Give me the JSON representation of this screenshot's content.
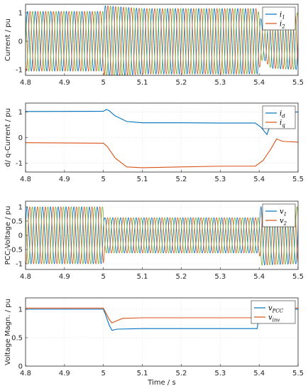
{
  "colors": {
    "blue": "#0072BD",
    "orange": "#D95319",
    "green": "#77AC30"
  },
  "chart_data": [
    {
      "type": "line",
      "ylabel": "Current / pu",
      "xlabel": "",
      "xlim": [
        4.8,
        5.5
      ],
      "ylim": [
        -1.2,
        1.3
      ],
      "xticks": [
        "4.8",
        "4.9",
        "5",
        "5.1",
        "5.2",
        "5.3",
        "5.4",
        "5.5"
      ],
      "yticks": [
        "-1",
        "0",
        "1"
      ],
      "grid": true,
      "legend_position": "top-right",
      "series": [
        {
          "name": "i",
          "sub": "1",
          "kind": "sin",
          "freq": 50,
          "phase": 0.0,
          "amp": [
            [
              4.8,
              1.05
            ],
            [
              5.0,
              1.05
            ],
            [
              5.003,
              1.25
            ],
            [
              5.05,
              1.2
            ],
            [
              5.1,
              1.15
            ],
            [
              5.395,
              1.15
            ],
            [
              5.41,
              0.6
            ],
            [
              5.43,
              0.95
            ],
            [
              5.5,
              1.0
            ]
          ]
        },
        {
          "name": "i",
          "sub": "2",
          "kind": "sin",
          "freq": 50,
          "phase": -2.094,
          "amp": [
            [
              4.8,
              1.05
            ],
            [
              5.0,
              1.05
            ],
            [
              5.003,
              1.25
            ],
            [
              5.05,
              1.2
            ],
            [
              5.1,
              1.15
            ],
            [
              5.395,
              1.15
            ],
            [
              5.41,
              0.6
            ],
            [
              5.43,
              0.95
            ],
            [
              5.5,
              1.0
            ]
          ]
        },
        {
          "name": "",
          "sub": "",
          "kind": "sin",
          "freq": 50,
          "phase": 2.094,
          "amp": [
            [
              4.8,
              1.05
            ],
            [
              5.0,
              1.05
            ],
            [
              5.003,
              1.25
            ],
            [
              5.05,
              1.2
            ],
            [
              5.1,
              1.15
            ],
            [
              5.395,
              1.15
            ],
            [
              5.41,
              0.6
            ],
            [
              5.43,
              0.95
            ],
            [
              5.5,
              1.0
            ]
          ]
        }
      ]
    },
    {
      "type": "line",
      "ylabel": "d/ q-Current / pu",
      "xlabel": "",
      "xlim": [
        4.8,
        5.5
      ],
      "ylim": [
        -1.35,
        1.35
      ],
      "xticks": [
        "4.8",
        "4.9",
        "5",
        "5.1",
        "5.2",
        "5.3",
        "5.4",
        "5.5"
      ],
      "yticks": [
        "-1",
        "0",
        "1"
      ],
      "grid": true,
      "legend_position": "top-right",
      "series": [
        {
          "name": "i",
          "sub": "d",
          "kind": "pts",
          "points": [
            [
              4.8,
              1.02
            ],
            [
              5.0,
              1.03
            ],
            [
              5.008,
              1.1
            ],
            [
              5.015,
              1.05
            ],
            [
              5.03,
              0.85
            ],
            [
              5.06,
              0.63
            ],
            [
              5.1,
              0.58
            ],
            [
              5.2,
              0.58
            ],
            [
              5.3,
              0.57
            ],
            [
              5.39,
              0.57
            ],
            [
              5.405,
              0.4
            ],
            [
              5.42,
              0.12
            ],
            [
              5.43,
              0.55
            ],
            [
              5.44,
              0.9
            ],
            [
              5.45,
              1.0
            ],
            [
              5.5,
              1.0
            ]
          ]
        },
        {
          "name": "i",
          "sub": "q",
          "kind": "pts",
          "points": [
            [
              4.8,
              -0.2
            ],
            [
              5.0,
              -0.22
            ],
            [
              5.01,
              -0.35
            ],
            [
              5.03,
              -0.8
            ],
            [
              5.06,
              -1.15
            ],
            [
              5.1,
              -1.18
            ],
            [
              5.2,
              -1.15
            ],
            [
              5.3,
              -1.12
            ],
            [
              5.39,
              -1.12
            ],
            [
              5.41,
              -0.9
            ],
            [
              5.43,
              -0.45
            ],
            [
              5.445,
              -0.05
            ],
            [
              5.46,
              -0.15
            ],
            [
              5.5,
              -0.18
            ]
          ]
        }
      ]
    },
    {
      "type": "line",
      "ylabel": "PCC-Voltage / pu",
      "xlabel": "",
      "xlim": [
        4.8,
        5.5
      ],
      "ylim": [
        -1.2,
        1.2
      ],
      "xticks": [
        "4.8",
        "4.9",
        "5",
        "5.1",
        "5.2",
        "5.3",
        "5.4",
        "5.5"
      ],
      "yticks": [
        "-1",
        "-0.5",
        "0",
        "0.5",
        "1"
      ],
      "grid": true,
      "legend_position": "top-right",
      "series": [
        {
          "name": "v",
          "sub": "1",
          "kind": "sin",
          "freq": 50,
          "phase": 0.3,
          "amp": [
            [
              4.8,
              1.0
            ],
            [
              5.0,
              1.0
            ],
            [
              5.003,
              0.62
            ],
            [
              5.4,
              0.62
            ],
            [
              5.405,
              1.05
            ],
            [
              5.5,
              1.0
            ]
          ]
        },
        {
          "name": "v",
          "sub": "2",
          "kind": "sin",
          "freq": 50,
          "phase": -1.794,
          "amp": [
            [
              4.8,
              1.0
            ],
            [
              5.0,
              1.0
            ],
            [
              5.003,
              0.62
            ],
            [
              5.4,
              0.62
            ],
            [
              5.405,
              1.05
            ],
            [
              5.5,
              1.0
            ]
          ]
        },
        {
          "name": "",
          "sub": "",
          "kind": "sin",
          "freq": 50,
          "phase": 2.394,
          "amp": [
            [
              4.8,
              1.0
            ],
            [
              5.0,
              1.0
            ],
            [
              5.003,
              0.62
            ],
            [
              5.4,
              0.62
            ],
            [
              5.405,
              1.05
            ],
            [
              5.5,
              1.0
            ]
          ]
        }
      ]
    },
    {
      "type": "line",
      "ylabel": "Voltage Magn. / pu",
      "xlabel": "Time / s",
      "xlim": [
        4.8,
        5.5
      ],
      "ylim": [
        0,
        1.2
      ],
      "xticks": [
        "4.8",
        "4.9",
        "5",
        "5.1",
        "5.2",
        "5.3",
        "5.4",
        "5.5"
      ],
      "yticks": [
        "0",
        "0.5",
        "1"
      ],
      "grid": true,
      "legend_position": "top-right",
      "series": [
        {
          "name": "v",
          "sub": "PCC",
          "kind": "pts",
          "points": [
            [
              4.8,
              1.0
            ],
            [
              5.0,
              1.0
            ],
            [
              5.003,
              0.95
            ],
            [
              5.015,
              0.72
            ],
            [
              5.022,
              0.63
            ],
            [
              5.035,
              0.65
            ],
            [
              5.1,
              0.66
            ],
            [
              5.2,
              0.66
            ],
            [
              5.3,
              0.66
            ],
            [
              5.395,
              0.66
            ],
            [
              5.4,
              0.9
            ],
            [
              5.41,
              1.0
            ],
            [
              5.5,
              1.0
            ]
          ]
        },
        {
          "name": "v",
          "sub": "inv",
          "kind": "pts",
          "points": [
            [
              4.8,
              1.02
            ],
            [
              5.0,
              1.02
            ],
            [
              5.003,
              0.98
            ],
            [
              5.015,
              0.82
            ],
            [
              5.022,
              0.76
            ],
            [
              5.035,
              0.8
            ],
            [
              5.05,
              0.84
            ],
            [
              5.1,
              0.85
            ],
            [
              5.2,
              0.85
            ],
            [
              5.3,
              0.85
            ],
            [
              5.395,
              0.85
            ],
            [
              5.4,
              0.95
            ],
            [
              5.41,
              1.02
            ],
            [
              5.5,
              1.02
            ]
          ]
        }
      ]
    }
  ]
}
